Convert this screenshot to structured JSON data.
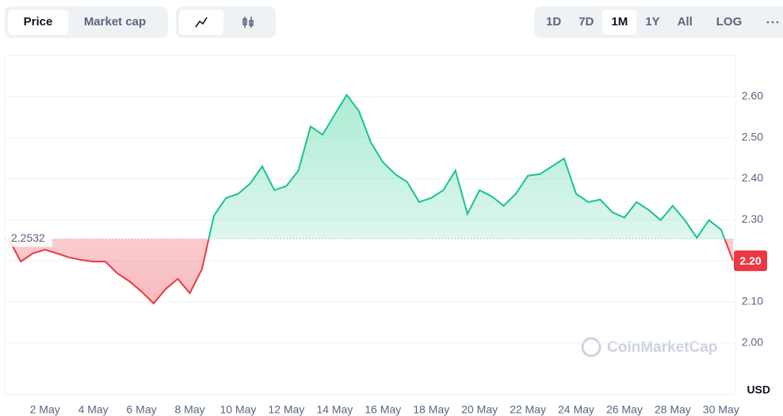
{
  "controls": {
    "view": [
      "Price",
      "Market cap"
    ],
    "ranges": [
      "1D",
      "7D",
      "1M",
      "1Y",
      "All"
    ],
    "log": "LOG"
  },
  "watermark": "CoinMarketCap",
  "chart_data": {
    "type": "line",
    "categories": [
      null,
      null,
      null,
      "2 May",
      null,
      null,
      null,
      "4 May",
      null,
      null,
      null,
      "6 May",
      null,
      null,
      null,
      "8 May",
      null,
      null,
      null,
      "10 May",
      null,
      null,
      null,
      "12 May",
      null,
      null,
      null,
      "14 May",
      null,
      null,
      null,
      "16 May",
      null,
      null,
      null,
      "18 May",
      null,
      null,
      null,
      "20 May",
      null,
      null,
      null,
      "22 May",
      null,
      null,
      null,
      "24 May",
      null,
      null,
      null,
      "26 May",
      null,
      null,
      null,
      "28 May",
      null,
      null,
      null,
      "30 May",
      null
    ],
    "series": [
      {
        "name": null,
        "color": "#16c784",
        "down_color": "#ea3943",
        "values": [
          2.253,
          2.198,
          2.218,
          2.227,
          2.218,
          2.208,
          2.202,
          2.198,
          2.198,
          2.169,
          2.15,
          2.125,
          2.096,
          2.131,
          2.156,
          2.121,
          2.179,
          2.31,
          2.353,
          2.363,
          2.388,
          2.43,
          2.372,
          2.382,
          2.42,
          2.527,
          2.507,
          2.556,
          2.604,
          2.565,
          2.488,
          2.44,
          2.411,
          2.392,
          2.343,
          2.353,
          2.372,
          2.42,
          2.314,
          2.372,
          2.357,
          2.334,
          2.363,
          2.407,
          2.411,
          2.43,
          2.449,
          2.363,
          2.343,
          2.349,
          2.318,
          2.305,
          2.343,
          2.324,
          2.299,
          2.334,
          2.299,
          2.256,
          2.299,
          2.276,
          2.2
        ]
      }
    ],
    "baseline": 2.2532,
    "current_price": {
      "value": 2.2,
      "label": "2.20"
    },
    "currency": "USD",
    "ylim": [
      1.874,
      2.7
    ],
    "yticks": [
      {
        "value": 2.0,
        "label": "2.00"
      },
      {
        "value": 2.1,
        "label": "2.10"
      },
      {
        "value": 2.2,
        "label": "2.20"
      },
      {
        "value": 2.3,
        "label": "2.30"
      },
      {
        "value": 2.4,
        "label": "2.40"
      },
      {
        "value": 2.5,
        "label": "2.50"
      },
      {
        "value": 2.6,
        "label": "2.60"
      }
    ],
    "grid": true
  }
}
